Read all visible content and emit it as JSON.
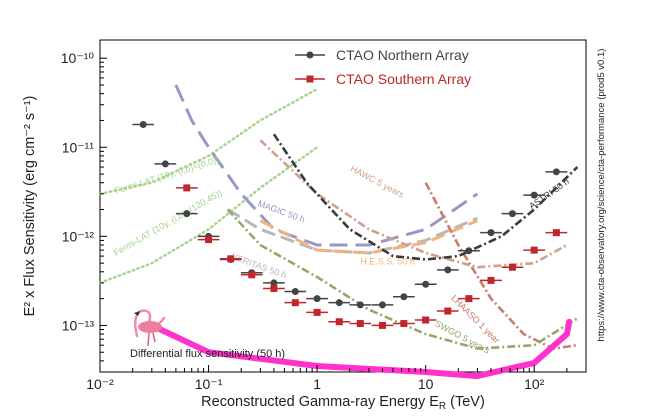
{
  "chart_data": {
    "type": "scatter",
    "title": "",
    "xlabel": "Reconstructed Gamma-ray Energy E",
    "xlabel_sub": "R",
    "xlabel_unit": " (TeV)",
    "ylabel": "E² x Flux Sensitivity (erg cm⁻² s⁻¹)",
    "xscale": "log",
    "yscale": "log",
    "xlim": [
      0.01,
      300
    ],
    "ylim": [
      3e-14,
      1.6e-10
    ],
    "x_ticks": [
      {
        "value": 0.01,
        "label": "10⁻²"
      },
      {
        "value": 0.1,
        "label": "10⁻¹"
      },
      {
        "value": 1,
        "label": "1"
      },
      {
        "value": 10,
        "label": "10"
      },
      {
        "value": 100,
        "label": "10²"
      }
    ],
    "y_ticks": [
      {
        "value": 1e-13,
        "label": "10⁻¹³"
      },
      {
        "value": 1e-12,
        "label": "10⁻¹²"
      },
      {
        "value": 1e-11,
        "label": "10⁻¹¹"
      },
      {
        "value": 1e-10,
        "label": "10⁻¹⁰"
      }
    ],
    "side_note": "https://www.cta-observatory.org/science/cta-performance (prod5 v0.1)",
    "footnote": "Differential flux sensitivity (50 h)",
    "legend_position": "top-right",
    "series": [
      {
        "name": "CTAO Northern Array",
        "color": "#444444",
        "marker": "circle",
        "points": [
          {
            "x": 0.025,
            "y": 1.8e-11
          },
          {
            "x": 0.04,
            "y": 6.5e-12
          },
          {
            "x": 0.063,
            "y": 1.8e-12
          },
          {
            "x": 0.1,
            "y": 1e-12
          },
          {
            "x": 0.16,
            "y": 5.5e-13
          },
          {
            "x": 0.25,
            "y": 3.9e-13
          },
          {
            "x": 0.4,
            "y": 3e-13
          },
          {
            "x": 0.63,
            "y": 2.4e-13
          },
          {
            "x": 1.0,
            "y": 2e-13
          },
          {
            "x": 1.6,
            "y": 1.8e-13
          },
          {
            "x": 2.5,
            "y": 1.7e-13
          },
          {
            "x": 4.0,
            "y": 1.7e-13
          },
          {
            "x": 6.3,
            "y": 2.1e-13
          },
          {
            "x": 10,
            "y": 2.9e-13
          },
          {
            "x": 16,
            "y": 4.2e-13
          },
          {
            "x": 25,
            "y": 6.9e-13
          },
          {
            "x": 40,
            "y": 1.1e-12
          },
          {
            "x": 63,
            "y": 1.8e-12
          },
          {
            "x": 100,
            "y": 2.9e-12
          },
          {
            "x": 160,
            "y": 5.3e-12
          }
        ]
      },
      {
        "name": "CTAO Southern Array",
        "color": "#c0272d",
        "marker": "square",
        "points": [
          {
            "x": 0.063,
            "y": 3.5e-12
          },
          {
            "x": 0.1,
            "y": 9.2e-13
          },
          {
            "x": 0.16,
            "y": 5.6e-13
          },
          {
            "x": 0.25,
            "y": 3.7e-13
          },
          {
            "x": 0.4,
            "y": 2.6e-13
          },
          {
            "x": 0.63,
            "y": 1.8e-13
          },
          {
            "x": 1.0,
            "y": 1.4e-13
          },
          {
            "x": 1.6,
            "y": 1.1e-13
          },
          {
            "x": 2.5,
            "y": 1.05e-13
          },
          {
            "x": 4.0,
            "y": 1e-13
          },
          {
            "x": 6.3,
            "y": 1.05e-13
          },
          {
            "x": 10,
            "y": 1.15e-13
          },
          {
            "x": 16,
            "y": 1.45e-13
          },
          {
            "x": 25,
            "y": 2e-13
          },
          {
            "x": 40,
            "y": 3.2e-13
          },
          {
            "x": 63,
            "y": 4.5e-13
          },
          {
            "x": 100,
            "y": 7e-13
          },
          {
            "x": 160,
            "y": 1.1e-12
          }
        ]
      }
    ],
    "reference_curves": [
      {
        "name": "Fermi-LAT (10y, (l,b)=(0,0))",
        "color": "#a5d38a",
        "style": "dotted",
        "points": [
          [
            0.01,
            3e-12
          ],
          [
            0.03,
            4e-12
          ],
          [
            0.1,
            8e-12
          ],
          [
            0.3,
            2e-11
          ],
          [
            1,
            4.5e-11
          ]
        ],
        "label_at": [
          0.014,
          3e-12
        ],
        "label_angle": -17
      },
      {
        "name": "Fermi-LAT (10y, (l,b)=(120,45))",
        "color": "#a5d38a",
        "style": "dotted",
        "points": [
          [
            0.01,
            3e-13
          ],
          [
            0.03,
            5e-13
          ],
          [
            0.1,
            1.2e-12
          ],
          [
            0.3,
            3.5e-12
          ],
          [
            1,
            1e-11
          ]
        ],
        "label_at": [
          0.014,
          6e-13
        ],
        "label_angle": -30
      },
      {
        "name": "MAGIC 50 h",
        "color": "#9a96c6",
        "style": "dashed",
        "points": [
          [
            0.05,
            5e-11
          ],
          [
            0.07,
            2e-11
          ],
          [
            0.1,
            1e-11
          ],
          [
            0.2,
            3e-12
          ],
          [
            0.4,
            1.2e-12
          ],
          [
            1,
            8e-13
          ],
          [
            3,
            8e-13
          ],
          [
            10,
            1.2e-12
          ],
          [
            30,
            3e-12
          ]
        ],
        "label_at": [
          0.28,
          2.2e-12
        ],
        "label_angle": 20
      },
      {
        "name": "VERITAS 50 h",
        "color": "#b8b8b8",
        "style": "longdash",
        "points": [
          [
            0.15,
            2e-12
          ],
          [
            0.3,
            1.2e-12
          ],
          [
            1,
            7e-13
          ],
          [
            3,
            6.5e-13
          ],
          [
            10,
            9e-13
          ],
          [
            30,
            1.6e-12
          ]
        ],
        "label_at": [
          0.16,
          5.6e-13
        ],
        "label_angle": 20
      },
      {
        "name": "H.E.S.S. 50 h",
        "color": "#f2b27c",
        "style": "longdash",
        "points": [
          [
            0.3,
            1.5e-12
          ],
          [
            1,
            7e-13
          ],
          [
            3,
            6.5e-13
          ],
          [
            10,
            8.5e-13
          ],
          [
            30,
            1.5e-12
          ]
        ],
        "label_at": [
          2.5,
          4.8e-13
        ],
        "label_angle": 0
      },
      {
        "name": "HAWC 5 years",
        "color": "#d0a08c",
        "style": "dashdot",
        "points": [
          [
            0.3,
            1.2e-11
          ],
          [
            1,
            3e-12
          ],
          [
            3,
            1.2e-12
          ],
          [
            10,
            6.5e-13
          ],
          [
            30,
            4.5e-13
          ],
          [
            100,
            5e-13
          ],
          [
            200,
            8e-13
          ]
        ],
        "label_at": [
          2.0,
          5.5e-12
        ],
        "label_angle": 28
      },
      {
        "name": "LHAASO 1 year",
        "color": "#c97d66",
        "style": "dashdot",
        "points": [
          [
            10,
            4e-12
          ],
          [
            20,
            8e-13
          ],
          [
            40,
            2e-13
          ],
          [
            80,
            8e-14
          ],
          [
            150,
            5.5e-14
          ],
          [
            250,
            6e-14
          ]
        ],
        "label_at": [
          17,
          2e-13
        ],
        "label_angle": 45
      },
      {
        "name": "SWGO 5 years",
        "color": "#94a86a",
        "style": "dashdot",
        "points": [
          [
            0.15,
            2e-12
          ],
          [
            0.3,
            8e-13
          ],
          [
            1,
            3.5e-13
          ],
          [
            3,
            1.5e-13
          ],
          [
            10,
            8e-14
          ],
          [
            30,
            5.5e-14
          ],
          [
            100,
            6e-14
          ],
          [
            250,
            1.2e-13
          ]
        ],
        "label_at": [
          12,
          1e-13
        ],
        "label_angle": 28
      },
      {
        "name": "ASTRI 50 h",
        "color": "#3a3a3a",
        "style": "dashdot",
        "points": [
          [
            0.4,
            1.4e-11
          ],
          [
            0.8,
            4e-12
          ],
          [
            2,
            1.2e-12
          ],
          [
            5,
            6e-13
          ],
          [
            10,
            5.5e-13
          ],
          [
            20,
            6e-13
          ],
          [
            50,
            1e-12
          ],
          [
            100,
            2e-12
          ],
          [
            250,
            6e-12
          ]
        ],
        "label_at": [
          95,
          2e-12
        ],
        "label_angle": -35
      },
      {
        "name": "Flamingo Trend",
        "color": "#ff33cc",
        "style": "thick",
        "points": [
          [
            0.03,
            1e-13
          ],
          [
            0.1,
            5e-14
          ],
          [
            1,
            3.5e-14
          ],
          [
            10,
            3e-14
          ],
          [
            30,
            2.7e-14
          ],
          [
            100,
            3.8e-14
          ],
          [
            200,
            8e-14
          ],
          [
            210,
            1.1e-13
          ]
        ]
      }
    ]
  }
}
